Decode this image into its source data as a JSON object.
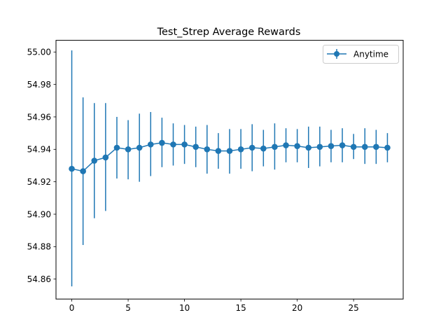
{
  "chart_data": {
    "type": "line",
    "title": "Test_Strep Average Rewards",
    "xlabel": "",
    "ylabel": "",
    "xlim": [
      -1.4,
      29.4
    ],
    "ylim": [
      54.8477,
      55.0072
    ],
    "x_ticks": [
      0,
      5,
      10,
      15,
      20,
      25
    ],
    "y_ticks": [
      54.86,
      54.88,
      54.9,
      54.92,
      54.94,
      54.96,
      54.98,
      55.0
    ],
    "grid": false,
    "legend": {
      "position": "top-right"
    },
    "series": [
      {
        "name": "Anytime",
        "color": "#1f77b4",
        "marker": "circle",
        "error_bars": true,
        "x": [
          0,
          1,
          2,
          3,
          4,
          5,
          6,
          7,
          8,
          9,
          10,
          11,
          12,
          13,
          14,
          15,
          16,
          17,
          18,
          19,
          20,
          21,
          22,
          23,
          24,
          25,
          26,
          27,
          28
        ],
        "y": [
          54.928,
          54.9265,
          54.933,
          54.935,
          54.941,
          54.94,
          54.941,
          54.943,
          54.944,
          54.943,
          54.943,
          54.9415,
          54.94,
          54.939,
          54.939,
          54.94,
          54.941,
          54.9405,
          54.9415,
          54.9425,
          54.942,
          54.941,
          54.9415,
          54.942,
          54.9425,
          54.9415,
          54.9415,
          54.9415,
          54.941
        ],
        "yerr_low": [
          54.8555,
          54.881,
          54.8975,
          54.902,
          54.922,
          54.9215,
          54.92,
          54.9235,
          54.929,
          54.93,
          54.931,
          54.929,
          54.925,
          54.928,
          54.925,
          54.928,
          54.9265,
          54.9295,
          54.9275,
          54.932,
          54.932,
          54.9285,
          54.9295,
          54.932,
          54.932,
          54.934,
          54.931,
          54.931,
          54.932
        ],
        "yerr_high": [
          55.001,
          54.972,
          54.9685,
          54.9685,
          54.96,
          54.958,
          54.962,
          54.963,
          54.9595,
          54.956,
          54.955,
          54.954,
          54.955,
          54.95,
          54.9525,
          54.9525,
          54.9555,
          54.952,
          54.956,
          54.953,
          54.9525,
          54.954,
          54.954,
          54.952,
          54.953,
          54.9495,
          54.953,
          54.952,
          54.95
        ]
      }
    ]
  }
}
